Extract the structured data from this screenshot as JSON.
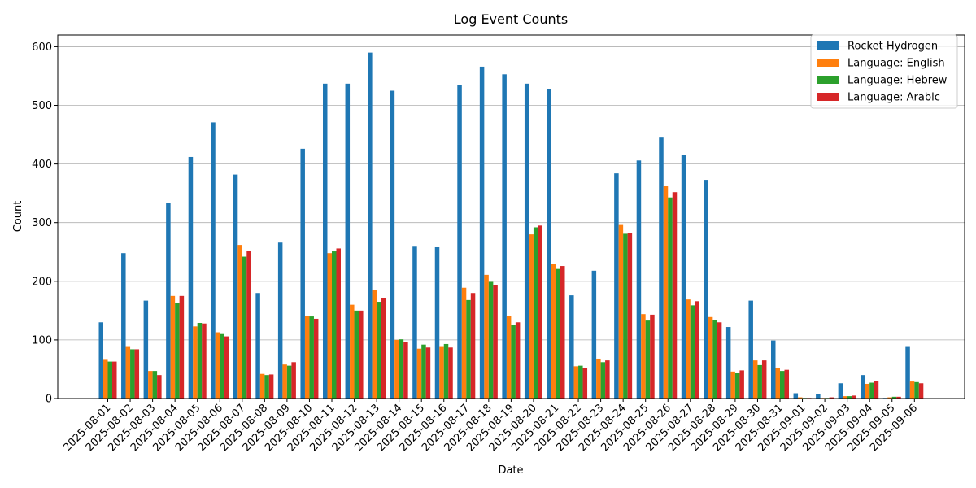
{
  "chart_data": {
    "type": "bar",
    "title": "Log Event Counts",
    "xlabel": "Date",
    "ylabel": "Count",
    "ylim": [
      0,
      620
    ],
    "yticks": [
      0,
      100,
      200,
      300,
      400,
      500,
      600
    ],
    "grid": "y",
    "legend_position": "top-right",
    "categories": [
      "2025-08-01",
      "2025-08-02",
      "2025-08-03",
      "2025-08-04",
      "2025-08-05",
      "2025-08-06",
      "2025-08-07",
      "2025-08-08",
      "2025-08-09",
      "2025-08-10",
      "2025-08-11",
      "2025-08-12",
      "2025-08-13",
      "2025-08-14",
      "2025-08-15",
      "2025-08-16",
      "2025-08-17",
      "2025-08-18",
      "2025-08-19",
      "2025-08-20",
      "2025-08-21",
      "2025-08-22",
      "2025-08-23",
      "2025-08-24",
      "2025-08-25",
      "2025-08-26",
      "2025-08-27",
      "2025-08-28",
      "2025-08-29",
      "2025-08-30",
      "2025-08-31",
      "2025-09-01",
      "2025-09-02",
      "2025-09-03",
      "2025-09-04",
      "2025-09-05",
      "2025-09-06"
    ],
    "series": [
      {
        "name": "Rocket Hydrogen",
        "color": "#1f77b4",
        "values": [
          130,
          248,
          167,
          333,
          412,
          471,
          382,
          180,
          266,
          426,
          537,
          537,
          590,
          525,
          259,
          258,
          535,
          566,
          553,
          537,
          528,
          176,
          218,
          384,
          406,
          445,
          415,
          373,
          122,
          167,
          99,
          9,
          8,
          26,
          40,
          1,
          88
        ]
      },
      {
        "name": "Language: English",
        "color": "#ff7f0e",
        "values": [
          66,
          88,
          47,
          175,
          123,
          113,
          262,
          42,
          58,
          141,
          248,
          160,
          185,
          100,
          85,
          88,
          189,
          211,
          141,
          280,
          229,
          55,
          68,
          296,
          144,
          362,
          169,
          139,
          46,
          65,
          52,
          2,
          1,
          4,
          25,
          2,
          29
        ]
      },
      {
        "name": "Language: Hebrew",
        "color": "#2ca02c",
        "values": [
          63,
          84,
          47,
          163,
          129,
          110,
          242,
          40,
          56,
          140,
          251,
          150,
          165,
          101,
          92,
          93,
          168,
          199,
          126,
          292,
          221,
          56,
          62,
          281,
          133,
          343,
          159,
          134,
          44,
          57,
          47,
          1,
          1,
          4,
          27,
          3,
          28
        ]
      },
      {
        "name": "Language: Arabic",
        "color": "#d62728",
        "values": [
          63,
          84,
          40,
          175,
          128,
          106,
          252,
          41,
          62,
          136,
          256,
          150,
          172,
          96,
          87,
          87,
          180,
          193,
          130,
          295,
          226,
          52,
          65,
          282,
          143,
          352,
          166,
          130,
          48,
          65,
          49,
          1,
          2,
          5,
          30,
          3,
          26
        ]
      }
    ]
  }
}
